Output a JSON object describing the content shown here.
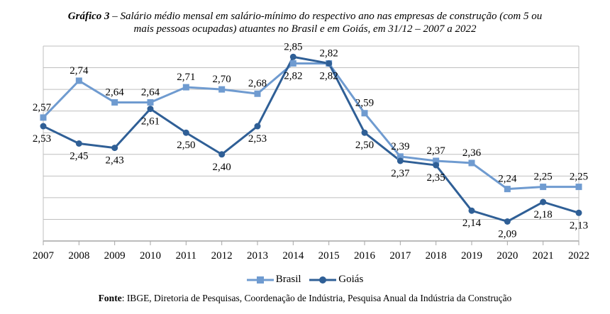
{
  "title": {
    "prefix": "Gráfico 3",
    "line1": " – Salário médio mensal em salário-mínimo do respectivo ano nas empresas de construção (com 5 ou",
    "line2": "mais pessoas ocupadas) atuantes no Brasil e em Goiás, em 31/12 – 2007 a 2022"
  },
  "legend": {
    "brasil": "Brasil",
    "goias": "Goiás"
  },
  "source": {
    "label": "Fonte",
    "text": ": IBGE, Diretoria de Pesquisas, Coordenação de Indústria, Pesquisa Anual da Indústria da Construção"
  },
  "chart_data": {
    "type": "line",
    "title": "Salário médio mensal em salário-mínimo do respectivo ano nas empresas de construção (com 5 ou mais pessoas ocupadas) atuantes no Brasil e em Goiás, em 31/12 – 2007 a 2022",
    "xlabel": "",
    "ylabel": "",
    "categories": [
      "2007",
      "2008",
      "2009",
      "2010",
      "2011",
      "2012",
      "2013",
      "2014",
      "2015",
      "2016",
      "2017",
      "2018",
      "2019",
      "2020",
      "2021",
      "2022"
    ],
    "ylim": [
      2.0,
      2.9
    ],
    "grid": true,
    "y_axis_labels_shown": false,
    "legend_position": "bottom",
    "series": [
      {
        "name": "Brasil",
        "color": "#6f9bd0",
        "marker": "square",
        "values": [
          2.57,
          2.74,
          2.64,
          2.64,
          2.71,
          2.7,
          2.68,
          2.82,
          2.82,
          2.59,
          2.39,
          2.37,
          2.36,
          2.24,
          2.25,
          2.25
        ],
        "labels": [
          "2,57",
          "2,74",
          "2,64",
          "2,64",
          "2,71",
          "2,70",
          "2,68",
          "2,82",
          "2,82",
          "2,59",
          "2,39",
          "2,37",
          "2,36",
          "2,24",
          "2,25",
          "2,25"
        ],
        "label_pos": [
          "above",
          "above",
          "above",
          "above",
          "above",
          "above",
          "above",
          "below",
          "above",
          "above",
          "above",
          "above",
          "above",
          "above",
          "above",
          "above"
        ]
      },
      {
        "name": "Goiás",
        "color": "#2f5f96",
        "marker": "circle",
        "values": [
          2.53,
          2.45,
          2.43,
          2.61,
          2.5,
          2.4,
          2.53,
          2.85,
          2.82,
          2.5,
          2.37,
          2.35,
          2.14,
          2.09,
          2.18,
          2.13
        ],
        "labels": [
          "2,53",
          "2,45",
          "2,43",
          "2,61",
          "2,50",
          "2,40",
          "2,53",
          "2,85",
          "2,82",
          "2,50",
          "2,37",
          "2,35",
          "2,14",
          "2,09",
          "2,18",
          "2,13"
        ],
        "label_pos": [
          "below",
          "below",
          "below",
          "below",
          "below",
          "below",
          "below",
          "above",
          "below",
          "below",
          "below",
          "below",
          "below",
          "below",
          "below",
          "below"
        ]
      }
    ]
  }
}
